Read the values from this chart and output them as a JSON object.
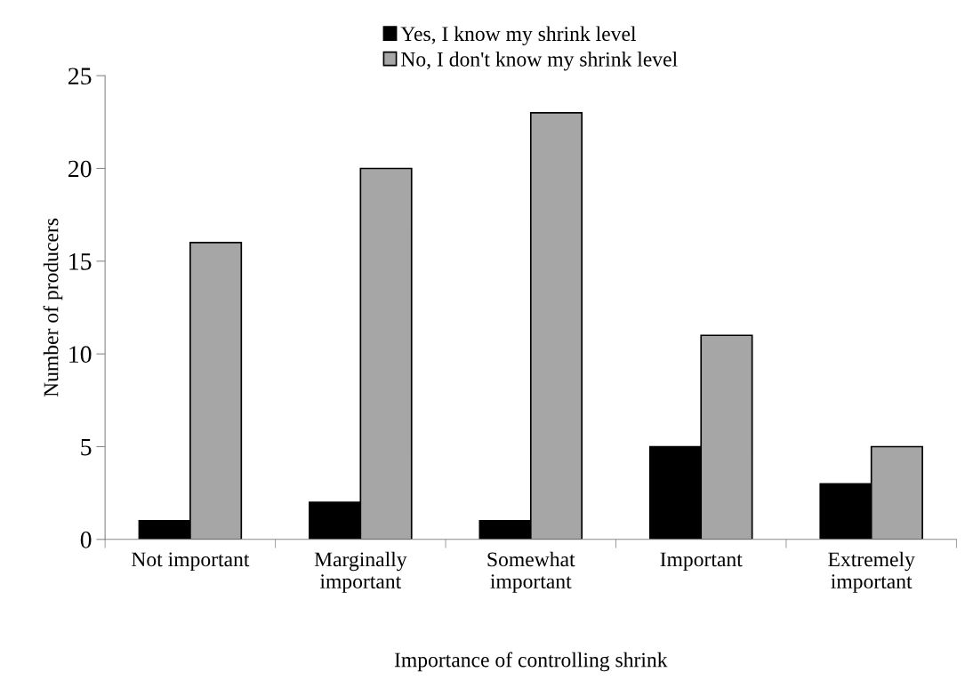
{
  "chart_data": {
    "type": "bar",
    "xlabel": "Importance of controlling shrink",
    "ylabel": "Number of producers",
    "categories": [
      "Not important",
      "Marginally\nimportant",
      "Somewhat\nimportant",
      "Important",
      "Extremely\nimportant"
    ],
    "series": [
      {
        "name": "Yes, I know my shrink level",
        "color": "#000000",
        "values": [
          1,
          2,
          1,
          5,
          3
        ]
      },
      {
        "name": "No, I don't know my shrink level",
        "color": "#a6a6a6",
        "values": [
          16,
          20,
          23,
          11,
          5
        ]
      }
    ],
    "ylim": [
      0,
      25
    ],
    "yticks": [
      0,
      5,
      10,
      15,
      20,
      25
    ],
    "grid": false,
    "legend": "top"
  }
}
